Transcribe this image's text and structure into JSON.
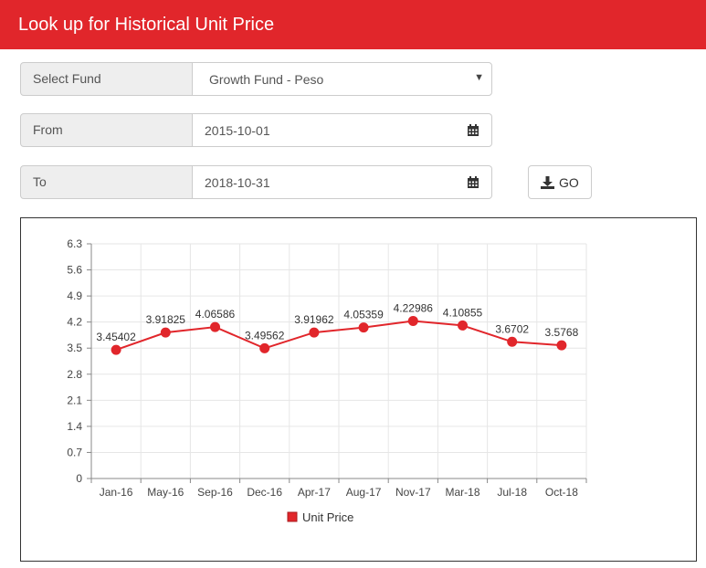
{
  "header": {
    "title": "Look up for Historical Unit Price"
  },
  "form": {
    "fund_label": "Select Fund",
    "fund_value": "Growth Fund - Peso",
    "from_label": "From",
    "from_value": "2015-10-01",
    "to_label": "To",
    "to_value": "2018-10-31",
    "go_label": "GO"
  },
  "colors": {
    "header": "#e1262b",
    "series": "#e1262b"
  },
  "chart_data": {
    "type": "line",
    "title": "",
    "xlabel": "",
    "ylabel": "",
    "x": [
      "Jan-16",
      "May-16",
      "Sep-16",
      "Dec-16",
      "Apr-17",
      "Aug-17",
      "Nov-17",
      "Mar-18",
      "Jul-18",
      "Oct-18"
    ],
    "y_ticks": [
      "6.3",
      "5.6",
      "4.9",
      "4.2",
      "3.5",
      "2.8",
      "2.1",
      "1.4",
      "0.7",
      "0"
    ],
    "ylim": [
      0,
      6.3
    ],
    "grid": true,
    "legend_position": "bottom",
    "series": [
      {
        "name": "Unit Price",
        "values": [
          3.45402,
          3.91825,
          4.06586,
          3.49562,
          3.91962,
          4.05359,
          4.22986,
          4.10855,
          3.6702,
          3.5768
        ],
        "labels": [
          "3.45402",
          "3.91825",
          "4.06586",
          "3.49562",
          "3.91962",
          "4.05359",
          "4.22986",
          "4.10855",
          "3.6702",
          "3.5768"
        ]
      }
    ]
  }
}
